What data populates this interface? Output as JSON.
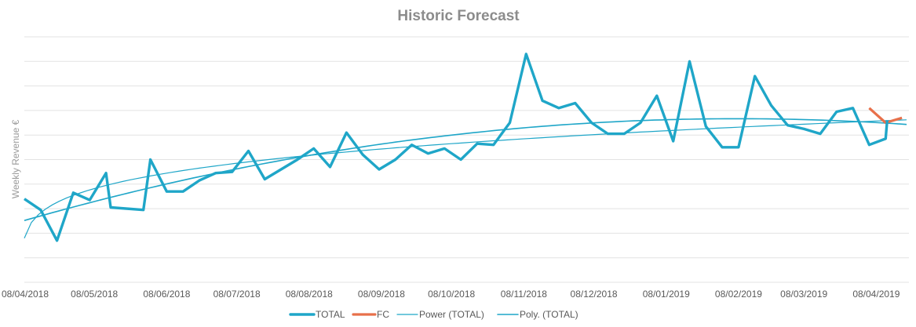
{
  "chart_data": {
    "type": "line",
    "title": "Historic Forecast",
    "xlabel": "",
    "ylabel": "Weekly Revenue €",
    "x_tick_labels": [
      "08/04/2018",
      "08/05/2018",
      "08/06/2018",
      "08/07/2018",
      "08/08/2018",
      "08/09/2018",
      "08/10/2018",
      "08/11/2018",
      "08/12/2018",
      "08/01/2019",
      "08/02/2019",
      "08/03/2019",
      "08/04/2019"
    ],
    "y_tick_labels_visible": false,
    "grid": true,
    "legend_position": "bottom",
    "ylim": [
      0,
      10
    ],
    "x": [
      "2018-04-08",
      "2018-04-15",
      "2018-04-22",
      "2018-04-29",
      "2018-05-06",
      "2018-05-13",
      "2018-05-15",
      "2018-05-29",
      "2018-06-01",
      "2018-06-08",
      "2018-06-15",
      "2018-06-22",
      "2018-06-29",
      "2018-07-06",
      "2018-07-13",
      "2018-07-20",
      "2018-07-27",
      "2018-08-03",
      "2018-08-10",
      "2018-08-17",
      "2018-08-24",
      "2018-08-31",
      "2018-09-07",
      "2018-09-14",
      "2018-09-21",
      "2018-09-28",
      "2018-10-05",
      "2018-10-12",
      "2018-10-19",
      "2018-10-26",
      "2018-11-02",
      "2018-11-09",
      "2018-11-16",
      "2018-11-23",
      "2018-11-30",
      "2018-12-07",
      "2018-12-14",
      "2018-12-21",
      "2018-12-28",
      "2019-01-04",
      "2019-01-11",
      "2019-01-18",
      "2019-01-25",
      "2019-02-01",
      "2019-02-08",
      "2019-02-15",
      "2019-02-22",
      "2019-03-01",
      "2019-03-08",
      "2019-03-15",
      "2019-03-22",
      "2019-03-29",
      "2019-04-05",
      "2019-04-12"
    ],
    "series": [
      {
        "name": "TOTAL",
        "color": "#1fa6c8",
        "values": [
          3.4,
          2.95,
          1.7,
          3.65,
          3.35,
          4.45,
          3.05,
          2.95,
          5.0,
          3.7,
          3.7,
          4.15,
          4.45,
          4.5,
          5.35,
          4.2,
          4.6,
          5.0,
          5.45,
          4.7,
          6.1,
          5.2,
          4.6,
          5.0,
          5.6,
          5.25,
          5.45,
          5.0,
          5.65,
          5.6,
          6.5,
          9.3,
          7.4,
          7.1,
          7.3,
          6.5,
          6.05,
          6.05,
          6.5,
          7.6,
          5.75,
          9.0,
          6.35,
          5.5,
          5.5,
          8.4,
          7.2,
          6.4,
          6.25,
          6.05,
          6.95,
          7.1,
          5.6,
          5.85
        ],
        "extension": {
          "x": [
            "2019-04-12"
          ],
          "values": [
            6.6
          ]
        }
      },
      {
        "name": "FC",
        "color": "#e8704a",
        "x": [
          "2019-04-05",
          "2019-04-12",
          "2019-04-19"
        ],
        "values": [
          7.1,
          6.5,
          6.7
        ]
      },
      {
        "name": "Power (TOTAL)",
        "color": "#1fa6c8",
        "type": "trendline-power"
      },
      {
        "name": "Poly. (TOTAL)",
        "color": "#1fa6c8",
        "type": "trendline-poly"
      }
    ]
  }
}
